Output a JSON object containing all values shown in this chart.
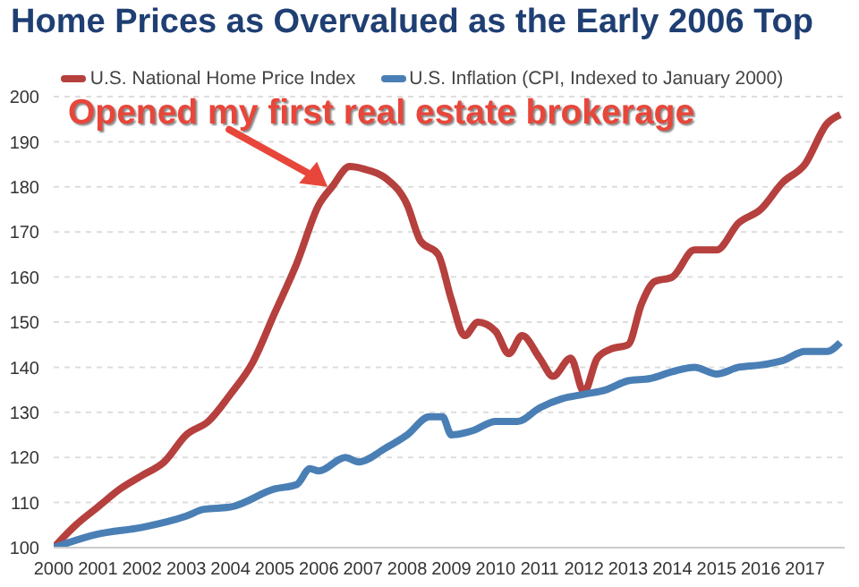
{
  "chart_data": {
    "type": "line",
    "title": "Home Prices as Overvalued as the Early 2006 Top",
    "legend": "top",
    "grid": "y",
    "marker": "none",
    "line_style": "solid",
    "xlim": [
      2000,
      2017.9
    ],
    "xticks": [
      2000,
      2001,
      2002,
      2003,
      2004,
      2005,
      2006,
      2007,
      2008,
      2009,
      2010,
      2011,
      2012,
      2013,
      2014,
      2015,
      2016,
      2017
    ],
    "ylim": [
      100,
      200
    ],
    "yticks": [
      100,
      110,
      120,
      130,
      140,
      150,
      160,
      170,
      180,
      190,
      200
    ],
    "annotations": [
      {
        "text": "Opened my first real estate brokerage",
        "x": 2006.2,
        "y": 180
      }
    ],
    "series": [
      {
        "name": "U.S. National Home Price Index",
        "color": "#b5403d",
        "x": [
          2000,
          2000.5,
          2001,
          2001.5,
          2002,
          2002.5,
          2003,
          2003.5,
          2004,
          2004.5,
          2005,
          2005.5,
          2006,
          2006.3,
          2006.7,
          2007,
          2007.5,
          2008,
          2008.3,
          2008.7,
          2009,
          2009.3,
          2009.6,
          2010,
          2010.3,
          2010.6,
          2011,
          2011.3,
          2011.7,
          2012,
          2012.3,
          2012.6,
          2013,
          2013.3,
          2013.6,
          2014,
          2014.5,
          2015,
          2015.5,
          2016,
          2016.5,
          2017,
          2017.5,
          2017.8
        ],
        "values": [
          100,
          105,
          109,
          113,
          116,
          119,
          125,
          128,
          134,
          141,
          152,
          163,
          176,
          180,
          184.5,
          184,
          182,
          176,
          168,
          165,
          155,
          147,
          150,
          148,
          143,
          147,
          142,
          138,
          142,
          134.5,
          142,
          144,
          145,
          154,
          159,
          160,
          166,
          166,
          172,
          175,
          181,
          185,
          194,
          196
        ]
      },
      {
        "name": "U.S. Inflation (CPI, Indexed to January 2000)",
        "color": "#4a7fb5",
        "x": [
          2000,
          2001,
          2002,
          2003,
          2003.4,
          2004,
          2005,
          2005.5,
          2005.8,
          2006,
          2006.6,
          2006.9,
          2007.5,
          2008,
          2008.5,
          2008.8,
          2009,
          2009.5,
          2010,
          2010.5,
          2011,
          2011.5,
          2012,
          2012.5,
          2013,
          2013.5,
          2014,
          2014.5,
          2015,
          2015.5,
          2016,
          2016.5,
          2017,
          2017.5,
          2017.8
        ],
        "values": [
          100,
          103,
          104.5,
          107,
          108.5,
          109,
          113,
          114,
          117.5,
          117,
          120,
          119,
          122,
          125,
          129,
          129,
          125,
          126,
          128,
          128,
          131,
          133,
          134,
          135,
          137,
          137.5,
          139,
          140,
          138.5,
          140,
          140.5,
          141.5,
          143.5,
          143.5,
          145.5
        ]
      }
    ]
  }
}
